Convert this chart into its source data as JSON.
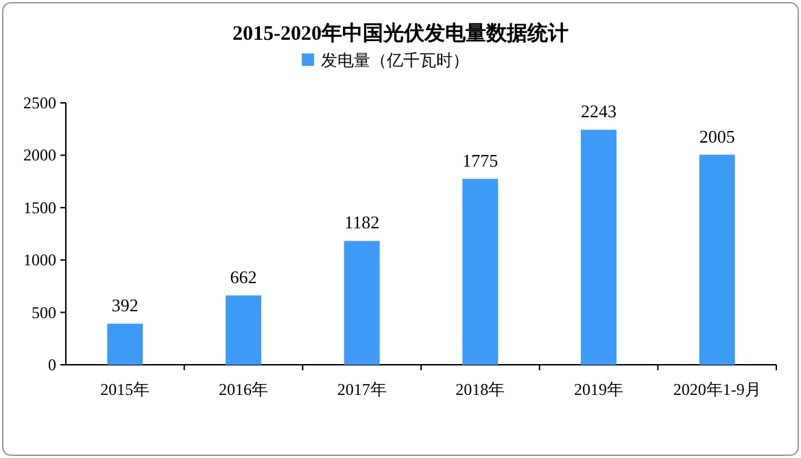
{
  "chart_data": {
    "type": "bar",
    "title": "2015-2020年中国光伏发电量数据统计",
    "categories": [
      "2015年",
      "2016年",
      "2017年",
      "2018年",
      "2019年",
      "2020年1-9月"
    ],
    "series": [
      {
        "name": "发电量（亿千瓦时）",
        "color": "#3d9bf7",
        "values": [
          392,
          662,
          1182,
          1775,
          2243,
          2005
        ]
      }
    ],
    "ylim": [
      0,
      2500
    ],
    "yticks": [
      0,
      500,
      1000,
      1500,
      2000,
      2500
    ],
    "data_labels": true,
    "legend": "top",
    "grid": false
  }
}
